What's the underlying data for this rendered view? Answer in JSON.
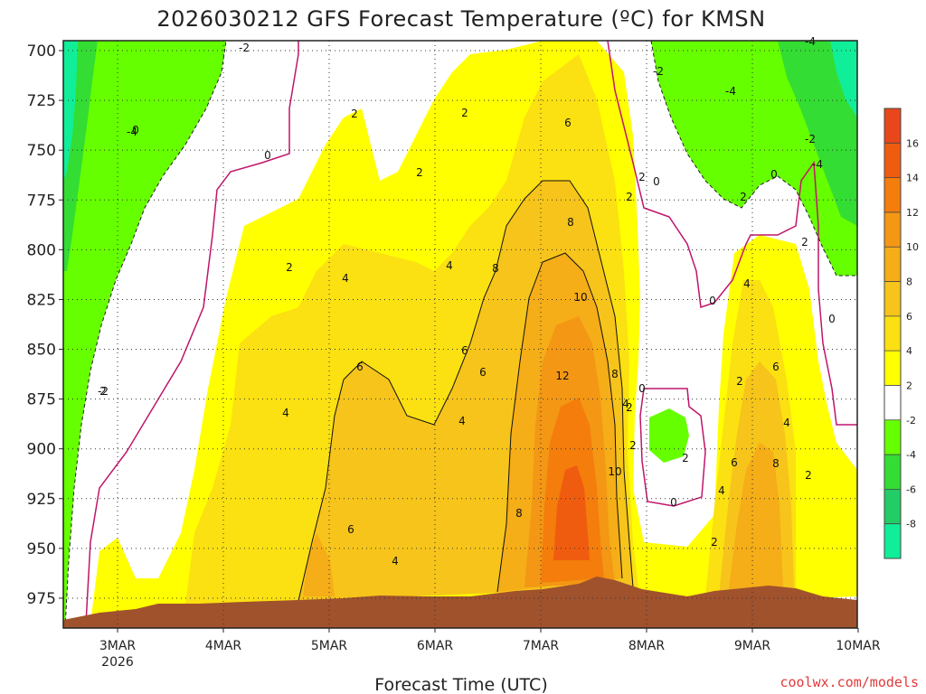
{
  "chart_data": {
    "type": "heatmap",
    "title": "2026030212 GFS Forecast Temperature (ºC) for KMSN",
    "xlabel": "Forecast Time (UTC)",
    "ylabel": "",
    "credit": "coolwx.com/models",
    "x_ticks": [
      "3MAR",
      "4MAR",
      "5MAR",
      "6MAR",
      "7MAR",
      "8MAR",
      "9MAR",
      "10MAR"
    ],
    "x_year_label": "2026",
    "y_ticks": [
      "700",
      "725",
      "750",
      "775",
      "800",
      "825",
      "850",
      "875",
      "900",
      "925",
      "950",
      "975"
    ],
    "ylim": [
      990,
      695
    ],
    "colorbar": {
      "labels": [
        "16",
        "14",
        "12",
        "10",
        "8",
        "6",
        "4",
        "2",
        "-2",
        "-4",
        "-6",
        "-8"
      ],
      "colors": [
        "#e8471b",
        "#f05c0f",
        "#f47d0c",
        "#f39714",
        "#f5ad18",
        "#f6c41a",
        "#fbe012",
        "#ffff00",
        "#ffffff",
        "#66ff00",
        "#33dd33",
        "#22cc66",
        "#11ee99"
      ]
    },
    "contour_levels": [
      "-6",
      "-4",
      "-2",
      "0",
      "2",
      "4",
      "6",
      "8",
      "10",
      "12"
    ],
    "region_temps_c": [
      -7,
      -3,
      0,
      3,
      5,
      7,
      9,
      11,
      13
    ]
  }
}
